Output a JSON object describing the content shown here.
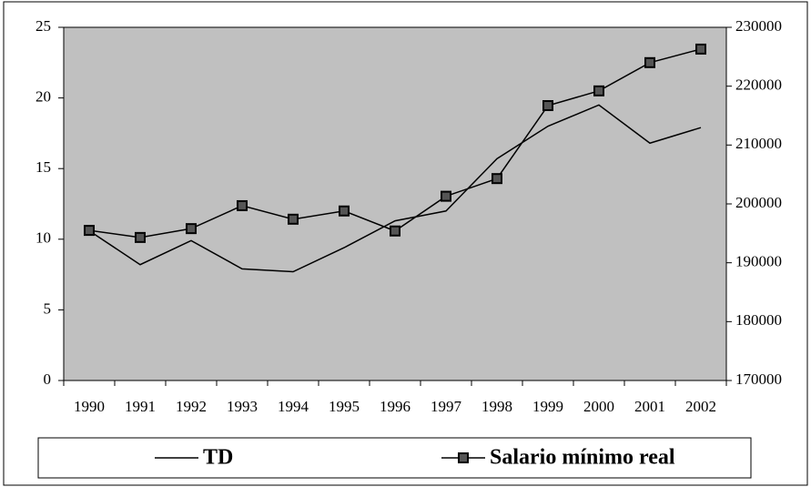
{
  "chart_data": {
    "type": "line",
    "categories": [
      "1990",
      "1991",
      "1992",
      "1993",
      "1994",
      "1995",
      "1996",
      "1997",
      "1998",
      "1999",
      "2000",
      "2001",
      "2002"
    ],
    "series": [
      {
        "name": "TD",
        "color": "#000000",
        "values": [
          10.6,
          8.2,
          9.9,
          7.9,
          7.7,
          9.4,
          11.3,
          12.0,
          15.7,
          18.0,
          19.5,
          16.8,
          17.9
        ]
      },
      {
        "name": "Salario mínimo real",
        "color": "#000000",
        "axis": "y2",
        "marker": "square",
        "values": [
          195500,
          194300,
          195800,
          199700,
          197400,
          198800,
          195400,
          201300,
          204300,
          216700,
          219200,
          224000,
          226300
        ]
      }
    ],
    "ylim": [
      0,
      25
    ],
    "yticks": [
      0,
      5,
      10,
      15,
      20,
      25
    ],
    "y2lim": [
      170000,
      230000
    ],
    "y2ticks": [
      170000,
      180000,
      190000,
      200000,
      210000,
      220000,
      230000
    ],
    "grid": false,
    "legend": "bottom",
    "background": "#c0c0c0"
  }
}
